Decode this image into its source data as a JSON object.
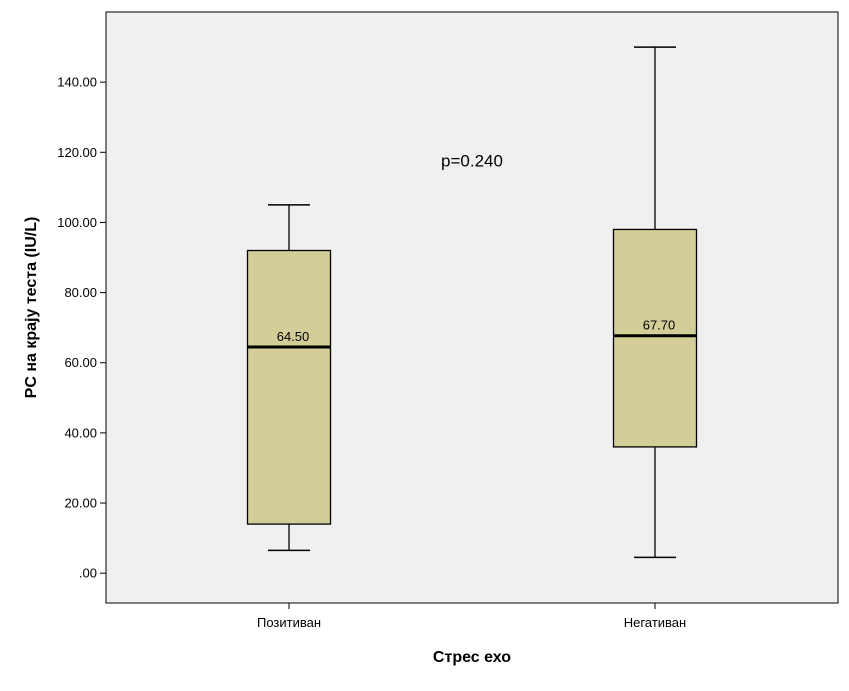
{
  "chart_data": {
    "type": "boxplot",
    "xlabel": "Стрес ехо",
    "ylabel": "PC на крају теста (IU/L)",
    "ylim": [
      -8.5,
      160
    ],
    "y_ticks": [
      0,
      20,
      40,
      60,
      80,
      100,
      120,
      140
    ],
    "y_tick_labels": [
      ".00",
      "20.00",
      "40.00",
      "60.00",
      "80.00",
      "100.00",
      "120.00",
      "140.00"
    ],
    "categories": [
      "Позитиван",
      "Негативан"
    ],
    "boxes": [
      {
        "category": "Позитиван",
        "min": 6.5,
        "q1": 14,
        "median": 64.5,
        "q3": 92,
        "max": 105,
        "median_label": "64.50"
      },
      {
        "category": "Негативан",
        "min": 4.5,
        "q1": 36,
        "median": 67.7,
        "q3": 98,
        "max": 150,
        "median_label": "67.70"
      }
    ],
    "annotation": "p=0.240",
    "grid": false,
    "colors": {
      "plot_bg": "#f0f0f0",
      "box_fill": "#d3ce98",
      "stroke": "#000000"
    }
  }
}
